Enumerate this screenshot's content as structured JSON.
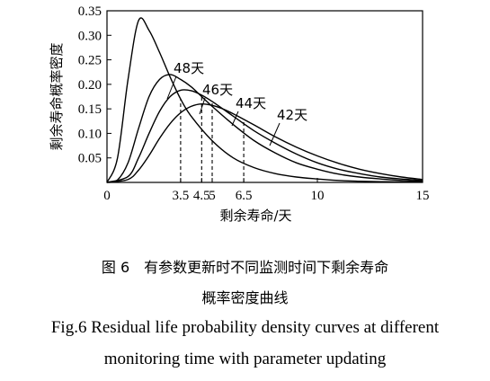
{
  "chart_data": {
    "type": "line",
    "xlabel": "剩余寿命/天",
    "ylabel": "剩余寿命概率密度",
    "xlim": [
      0,
      15
    ],
    "ylim": [
      0,
      0.35
    ],
    "x_ticks": [
      "0",
      "3.5",
      "4.5",
      "5",
      "6.5",
      "10",
      "15"
    ],
    "y_ticks": [
      "0.05",
      "0.10",
      "0.15",
      "0.20",
      "0.25",
      "0.30",
      "0.35"
    ],
    "grid": false,
    "series": [
      {
        "name": "48天",
        "x": [
          0,
          0.5,
          1,
          1.5,
          2,
          2.5,
          3,
          3.5,
          4,
          5,
          6,
          7,
          8,
          9,
          10,
          11,
          12,
          13,
          14,
          15
        ],
        "y": [
          0,
          0.05,
          0.21,
          0.33,
          0.31,
          0.265,
          0.215,
          0.17,
          0.135,
          0.085,
          0.05,
          0.03,
          0.018,
          0.011,
          0.007,
          0.004,
          0.0025,
          0.0015,
          0.001,
          0.0005
        ]
      },
      {
        "name": "46天",
        "x": [
          0,
          0.5,
          1,
          1.5,
          2,
          2.5,
          3,
          3.5,
          4,
          4.5,
          5,
          6,
          7,
          8,
          9,
          10,
          11,
          12,
          13,
          14,
          15
        ],
        "y": [
          0,
          0.005,
          0.04,
          0.11,
          0.175,
          0.21,
          0.22,
          0.21,
          0.195,
          0.175,
          0.155,
          0.118,
          0.085,
          0.06,
          0.04,
          0.027,
          0.017,
          0.011,
          0.007,
          0.004,
          0.002
        ]
      },
      {
        "name": "44天",
        "x": [
          0,
          1,
          1.5,
          2,
          2.5,
          3,
          3.5,
          4,
          4.5,
          5,
          6,
          7,
          8,
          9,
          10,
          11,
          12,
          13,
          14,
          15
        ],
        "y": [
          0,
          0.012,
          0.05,
          0.1,
          0.145,
          0.175,
          0.188,
          0.187,
          0.178,
          0.165,
          0.135,
          0.105,
          0.08,
          0.058,
          0.04,
          0.027,
          0.018,
          0.011,
          0.007,
          0.004
        ]
      },
      {
        "name": "42天",
        "x": [
          0,
          1,
          1.5,
          2,
          2.5,
          3,
          3.5,
          4,
          4.5,
          5,
          5.5,
          6,
          7,
          8,
          9,
          10,
          11,
          12,
          13,
          14,
          15
        ],
        "y": [
          0,
          0.006,
          0.025,
          0.055,
          0.09,
          0.12,
          0.142,
          0.155,
          0.16,
          0.157,
          0.15,
          0.14,
          0.117,
          0.093,
          0.072,
          0.054,
          0.039,
          0.027,
          0.018,
          0.011,
          0.006
        ]
      }
    ],
    "markers": [
      {
        "x": 3.5,
        "label": "3.5"
      },
      {
        "x": 4.5,
        "label": "4.5"
      },
      {
        "x": 5,
        "label": "5"
      },
      {
        "x": 6.5,
        "label": "6.5"
      }
    ]
  },
  "caption": {
    "zh_line1": "图 6　有参数更新时不同监测时间下剩余寿命",
    "zh_line2": "概率密度曲线",
    "en_line1": "Fig.6    Residual life probability density curves at different",
    "en_line2": "monitoring time with parameter updating"
  }
}
